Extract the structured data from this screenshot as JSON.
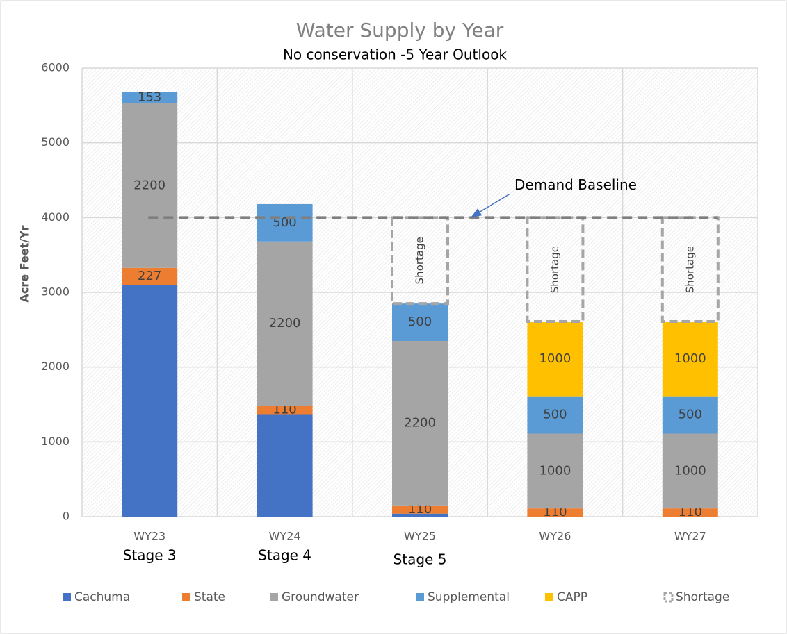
{
  "chart_data": {
    "type": "stacked-bar",
    "title": "Water Supply by Year",
    "subtitle": "No conservation -5 Year Outlook",
    "y_label": "Acre Feet/Yr",
    "categories": [
      "WY23",
      "WY24",
      "WY25",
      "WY26",
      "WY27"
    ],
    "stage_labels": [
      "Stage 3",
      "Stage 4",
      "Stage 5",
      null,
      null
    ],
    "ylim": [
      0,
      6000
    ],
    "yticks": [
      0,
      1000,
      2000,
      3000,
      4000,
      5000,
      6000
    ],
    "grid": true,
    "legend": "bottom",
    "baseline": {
      "value": 4000,
      "label": "Demand Baseline"
    },
    "series": [
      {
        "name": "Cachuma",
        "color": "#4472c4",
        "data_labels": false,
        "values": [
          3100,
          1370,
          40,
          null,
          null
        ]
      },
      {
        "name": "State",
        "color": "#ed7d31",
        "data_labels": true,
        "values": [
          227,
          110,
          110,
          110,
          110
        ]
      },
      {
        "name": "Groundwater",
        "color": "#a5a5a5",
        "data_labels": true,
        "values": [
          2200,
          2200,
          2200,
          1000,
          1000
        ]
      },
      {
        "name": "Supplemental",
        "color": "#5b9bd5",
        "data_labels": true,
        "values": [
          153,
          500,
          500,
          500,
          500
        ]
      },
      {
        "name": "CAPP",
        "color": "#ffc000",
        "data_labels": true,
        "values": [
          null,
          null,
          null,
          1000,
          1000
        ]
      },
      {
        "name": "Shortage",
        "color": "#a6a6a6",
        "style": "dashed-outline",
        "data_labels": true,
        "values": [
          null,
          null,
          1150,
          1390,
          1390
        ],
        "value_labels": [
          null,
          null,
          "Shortage",
          "Shortage",
          "Shortage"
        ]
      }
    ]
  }
}
